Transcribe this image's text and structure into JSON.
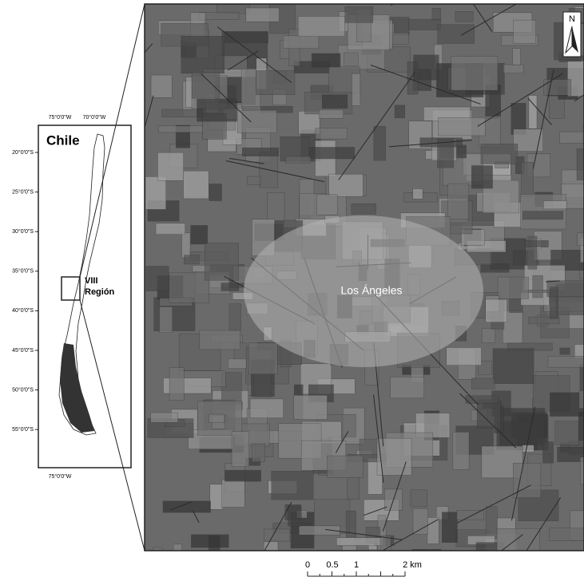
{
  "inset": {
    "title": "Chile",
    "region_label": [
      "VIII",
      "Región"
    ],
    "lon_labels_top": [
      "75°0'0\"W",
      "70°0'0\"W"
    ],
    "lon_label_bottom": "75°0'0\"W",
    "lat_labels": [
      "20°0'0\"S",
      "25°0'0\"S",
      "30°0'0\"S",
      "35°0'0\"S",
      "40°0'0\"S",
      "45°0'0\"S",
      "50°0'0\"S",
      "55°0'0\"S"
    ]
  },
  "main_map": {
    "city_label": "Los Ángeles",
    "north": "N",
    "scale_labels": [
      "0",
      "0.5",
      "1",
      "2 km"
    ]
  }
}
